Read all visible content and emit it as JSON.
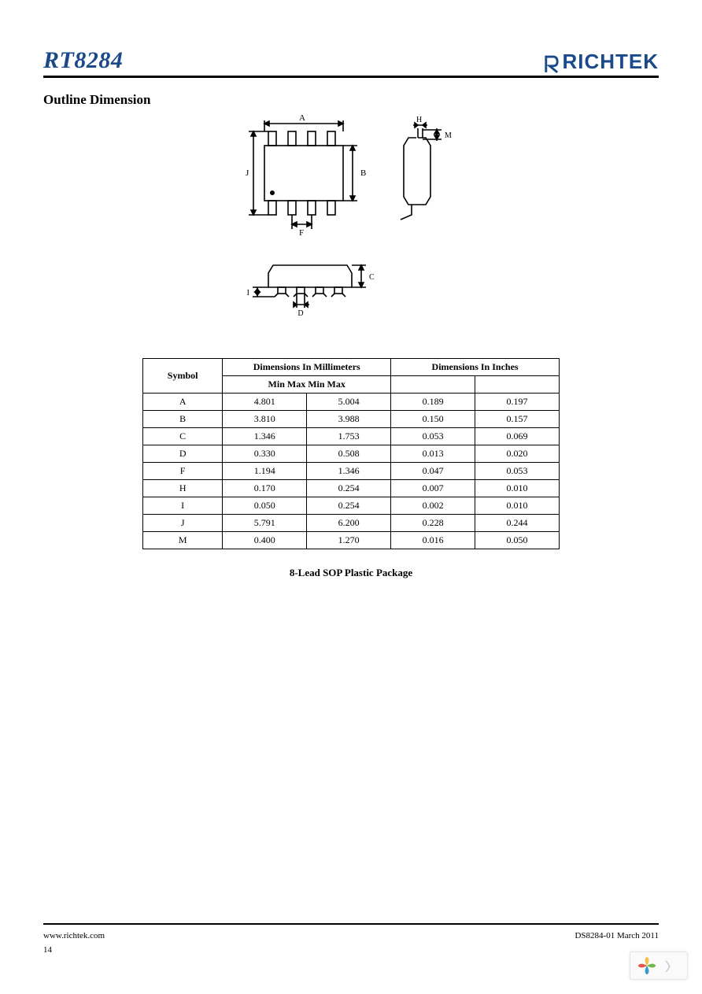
{
  "header": {
    "part_number": "RT8284",
    "brand_text": "RICHTEK",
    "brand_color": "#1a4a8a"
  },
  "section": {
    "title": "Outline Dimension"
  },
  "diagram": {
    "labels": {
      "A": "A",
      "B": "B",
      "C": "C",
      "D": "D",
      "F": "F",
      "H": "H",
      "I": "I",
      "J": "J",
      "M": "M"
    },
    "stroke": "#000000",
    "stroke_width": 1.6
  },
  "table": {
    "headers": {
      "symbol": "Symbol",
      "mm_group": "Dimensions In Millimeters",
      "in_group": "Dimensions In Inches",
      "sub": "Min Max Min Max"
    },
    "rows": [
      {
        "sym": "A",
        "mm_min": "4.801",
        "mm_max": "5.004",
        "in_min": "0.189",
        "in_max": "0.197"
      },
      {
        "sym": "B",
        "mm_min": "3.810",
        "mm_max": "3.988",
        "in_min": "0.150",
        "in_max": "0.157"
      },
      {
        "sym": "C",
        "mm_min": "1.346",
        "mm_max": "1.753",
        "in_min": "0.053",
        "in_max": "0.069"
      },
      {
        "sym": "D",
        "mm_min": "0.330",
        "mm_max": "0.508",
        "in_min": "0.013",
        "in_max": "0.020"
      },
      {
        "sym": "F",
        "mm_min": "1.194",
        "mm_max": "1.346",
        "in_min": "0.047",
        "in_max": "0.053"
      },
      {
        "sym": "H",
        "mm_min": "0.170",
        "mm_max": "0.254",
        "in_min": "0.007",
        "in_max": "0.010"
      },
      {
        "sym": "I",
        "mm_min": "0.050",
        "mm_max": "0.254",
        "in_min": "0.002",
        "in_max": "0.010"
      },
      {
        "sym": "J",
        "mm_min": "5.791",
        "mm_max": "6.200",
        "in_min": "0.228",
        "in_max": "0.244"
      },
      {
        "sym": "M",
        "mm_min": "0.400",
        "mm_max": "1.270",
        "in_min": "0.016",
        "in_max": "0.050"
      }
    ]
  },
  "caption": "8-Lead SOP Plastic Package",
  "footer": {
    "url": "www.richtek.com",
    "docrev": "DS8284-01   March  2011",
    "page": "14"
  },
  "nav": {
    "icon_colors": [
      "#f6c24a",
      "#6fb845",
      "#3a9acb",
      "#e1574c"
    ]
  }
}
